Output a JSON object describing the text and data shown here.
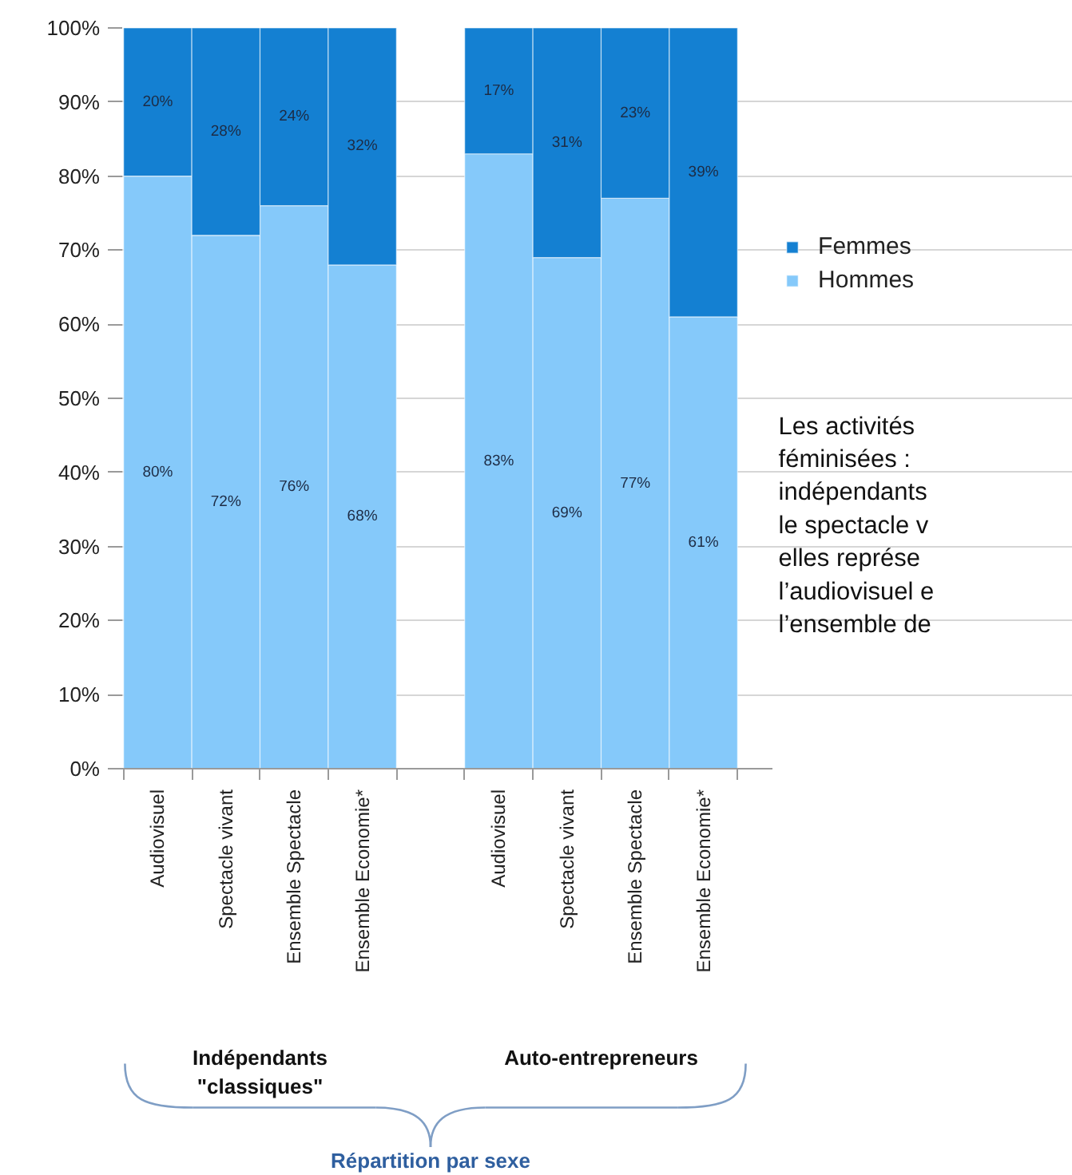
{
  "chart_data": {
    "type": "bar",
    "stacked": true,
    "title": "Répartition par sexe",
    "categories": [
      "Audiovisuel",
      "Spectacle vivant",
      "Ensemble Spectacle",
      "Ensemble Economie*",
      null,
      "Audiovisuel",
      "Spectacle vivant",
      "Ensemble Spectacle",
      "Ensemble Economie*"
    ],
    "series": [
      {
        "name": "Hommes",
        "color": "#85c9fa",
        "values": [
          80,
          72,
          76,
          68,
          null,
          83,
          69,
          77,
          61
        ],
        "value_labels": [
          "80%",
          "72%",
          "76%",
          "68%",
          null,
          "83%",
          "69%",
          "77%",
          "61%"
        ]
      },
      {
        "name": "Femmes",
        "color": "#1480d2",
        "values": [
          20,
          28,
          24,
          32,
          null,
          17,
          31,
          23,
          39
        ],
        "value_labels": [
          "20%",
          "28%",
          "24%",
          "32%",
          null,
          "17%",
          "31%",
          "23%",
          "39%"
        ]
      }
    ],
    "ylim": [
      0,
      100
    ],
    "yticks": [
      {
        "value": 0,
        "label": "0%"
      },
      {
        "value": 10,
        "label": "10%"
      },
      {
        "value": 20,
        "label": "20%"
      },
      {
        "value": 30,
        "label": "30%"
      },
      {
        "value": 40,
        "label": "40%"
      },
      {
        "value": 50,
        "label": "50%"
      },
      {
        "value": 60,
        "label": "60%"
      },
      {
        "value": 70,
        "label": "70%"
      },
      {
        "value": 80,
        "label": "80%"
      },
      {
        "value": 90,
        "label": "90%"
      },
      {
        "value": 100,
        "label": "100%"
      }
    ],
    "grid": "y",
    "legend": "right",
    "annotations": [
      "Indépendants\n\"classiques\"",
      "Auto-entrepreneurs",
      "Les activités\nféminisées :\nindépendants\nle spectacle v\nelles représe\nl’audiovisuel e\nl’ensemble de"
    ]
  }
}
